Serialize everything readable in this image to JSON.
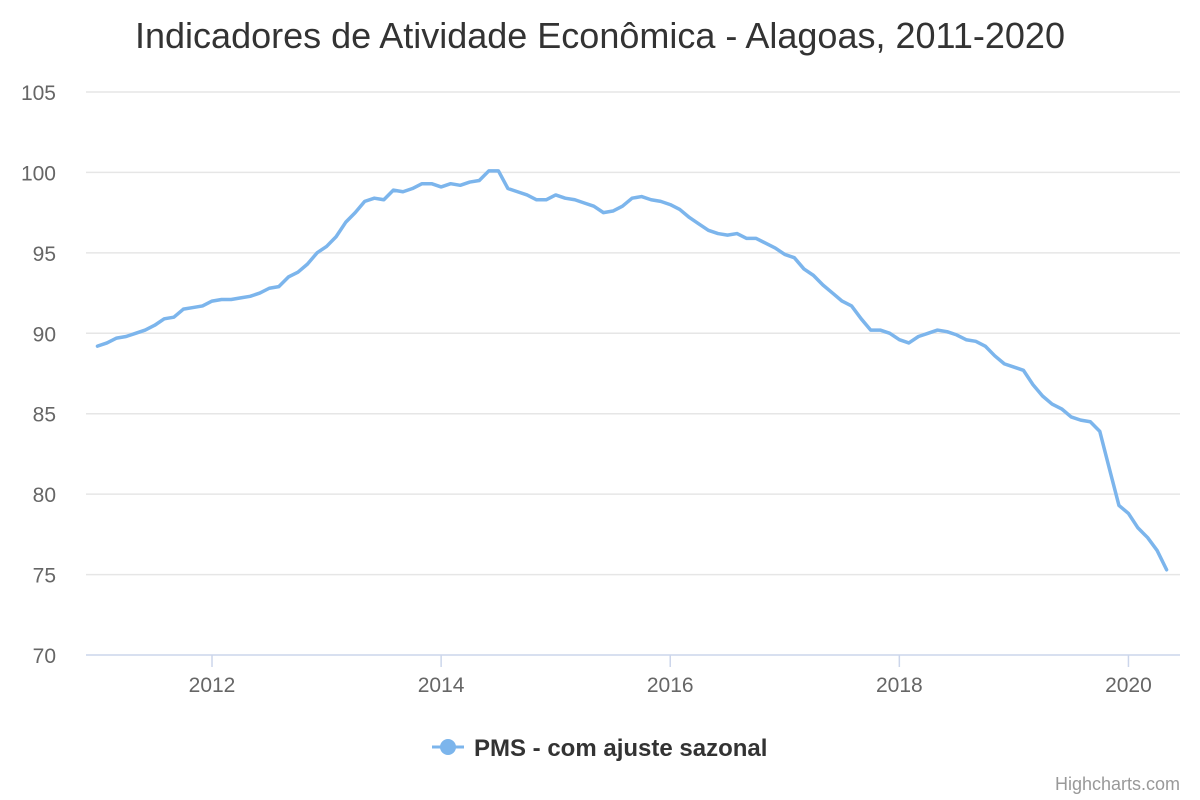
{
  "chart_data": {
    "type": "line",
    "title": "Indicadores de Atividade Econômica - Alagoas, 2011-2020",
    "xlabel": "",
    "ylabel": "",
    "ylim": [
      70,
      105
    ],
    "y_ticks": [
      "70",
      "75",
      "80",
      "85",
      "90",
      "95",
      "100",
      "105"
    ],
    "y_tick_values": [
      70,
      75,
      80,
      85,
      90,
      95,
      100,
      105
    ],
    "x_ticks": [
      "2012",
      "2014",
      "2016",
      "2018",
      "2020"
    ],
    "x_tick_values": [
      2012,
      2014,
      2016,
      2018,
      2020
    ],
    "xlim": [
      2010.9,
      2020.45
    ],
    "grid": "horizontal",
    "legend_position": "bottom-center",
    "series": [
      {
        "name": "PMS - com ajuste sazonal",
        "color": "#7cb5ec",
        "x": [
          2011.0,
          2011.083,
          2011.167,
          2011.25,
          2011.333,
          2011.417,
          2011.5,
          2011.583,
          2011.667,
          2011.75,
          2011.833,
          2011.917,
          2012.0,
          2012.083,
          2012.167,
          2012.25,
          2012.333,
          2012.417,
          2012.5,
          2012.583,
          2012.667,
          2012.75,
          2012.833,
          2012.917,
          2013.0,
          2013.083,
          2013.167,
          2013.25,
          2013.333,
          2013.417,
          2013.5,
          2013.583,
          2013.667,
          2013.75,
          2013.833,
          2013.917,
          2014.0,
          2014.083,
          2014.167,
          2014.25,
          2014.333,
          2014.417,
          2014.5,
          2014.583,
          2014.667,
          2014.75,
          2014.833,
          2014.917,
          2015.0,
          2015.083,
          2015.167,
          2015.25,
          2015.333,
          2015.417,
          2015.5,
          2015.583,
          2015.667,
          2015.75,
          2015.833,
          2015.917,
          2016.0,
          2016.083,
          2016.167,
          2016.25,
          2016.333,
          2016.417,
          2016.5,
          2016.583,
          2016.667,
          2016.75,
          2016.833,
          2016.917,
          2017.0,
          2017.083,
          2017.167,
          2017.25,
          2017.333,
          2017.417,
          2017.5,
          2017.583,
          2017.667,
          2017.75,
          2017.833,
          2017.917,
          2018.0,
          2018.083,
          2018.167,
          2018.25,
          2018.333,
          2018.417,
          2018.5,
          2018.583,
          2018.667,
          2018.75,
          2018.833,
          2018.917,
          2019.0,
          2019.083,
          2019.167,
          2019.25,
          2019.333,
          2019.417,
          2019.5,
          2019.583,
          2019.667,
          2019.75,
          2019.833,
          2019.917,
          2020.0,
          2020.083,
          2020.167,
          2020.25,
          2020.333
        ],
        "values": [
          89.2,
          89.4,
          89.7,
          89.8,
          90.0,
          90.2,
          90.5,
          90.9,
          91.0,
          91.5,
          91.6,
          91.7,
          92.0,
          92.1,
          92.1,
          92.2,
          92.3,
          92.5,
          92.8,
          92.9,
          93.5,
          93.8,
          94.3,
          95.0,
          95.4,
          96.0,
          96.9,
          97.5,
          98.2,
          98.4,
          98.3,
          98.9,
          98.8,
          99.0,
          99.3,
          99.3,
          99.1,
          99.3,
          99.2,
          99.4,
          99.5,
          100.1,
          100.1,
          99.0,
          98.8,
          98.6,
          98.3,
          98.3,
          98.6,
          98.4,
          98.3,
          98.1,
          97.9,
          97.5,
          97.6,
          97.9,
          98.4,
          98.5,
          98.3,
          98.2,
          98.0,
          97.7,
          97.2,
          96.8,
          96.4,
          96.2,
          96.1,
          96.2,
          95.9,
          95.9,
          95.6,
          95.3,
          94.9,
          94.7,
          94.0,
          93.6,
          93.0,
          92.5,
          92.0,
          91.7,
          90.9,
          90.2,
          90.2,
          90.0,
          89.6,
          89.4,
          89.8,
          90.0,
          90.2,
          90.1,
          89.9,
          89.6,
          89.5,
          89.2,
          88.6,
          88.1,
          87.9,
          87.7,
          86.8,
          86.1,
          85.6,
          85.3,
          84.8,
          84.6,
          84.5,
          83.9,
          81.6,
          79.3,
          78.8,
          77.9,
          77.3,
          76.5,
          75.3
        ]
      }
    ]
  },
  "credits": "Highcharts.com"
}
